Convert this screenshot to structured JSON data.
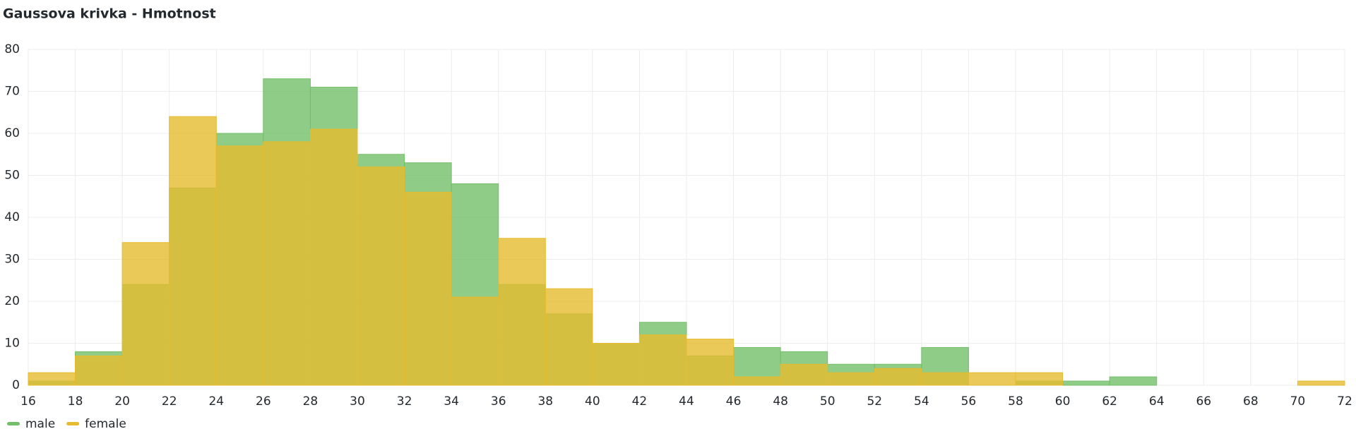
{
  "chart_data": {
    "type": "histogram",
    "title": "Gaussova krivka - Hmotnost",
    "bins": [
      16,
      18,
      20,
      22,
      24,
      26,
      28,
      30,
      32,
      34,
      36,
      38,
      40,
      42,
      44,
      46,
      48,
      50,
      52,
      54,
      56,
      58,
      60,
      62,
      64,
      66,
      68,
      70,
      72
    ],
    "series": [
      {
        "name": "male",
        "color": "#73bf69",
        "values": [
          1,
          8,
          24,
          47,
          60,
          73,
          71,
          55,
          53,
          48,
          24,
          17,
          10,
          15,
          7,
          9,
          8,
          5,
          5,
          9,
          0,
          1,
          1,
          2,
          0,
          0,
          0,
          0
        ]
      },
      {
        "name": "female",
        "color": "#e6bb2e",
        "values": [
          3,
          7,
          34,
          64,
          57,
          58,
          61,
          52,
          46,
          21,
          35,
          23,
          10,
          12,
          11,
          2,
          5,
          3,
          4,
          3,
          3,
          3,
          0,
          0,
          0,
          0,
          0,
          1
        ]
      }
    ],
    "xlim": [
      16,
      72
    ],
    "xticks": [
      16,
      18,
      20,
      22,
      24,
      26,
      28,
      30,
      32,
      34,
      36,
      38,
      40,
      42,
      44,
      46,
      48,
      50,
      52,
      54,
      56,
      58,
      60,
      62,
      64,
      66,
      68,
      70,
      72
    ],
    "ylim": [
      0,
      80
    ],
    "yticks": [
      0,
      10,
      20,
      30,
      40,
      50,
      60,
      70,
      80
    ],
    "grid": true,
    "legend": "bottom-left"
  }
}
